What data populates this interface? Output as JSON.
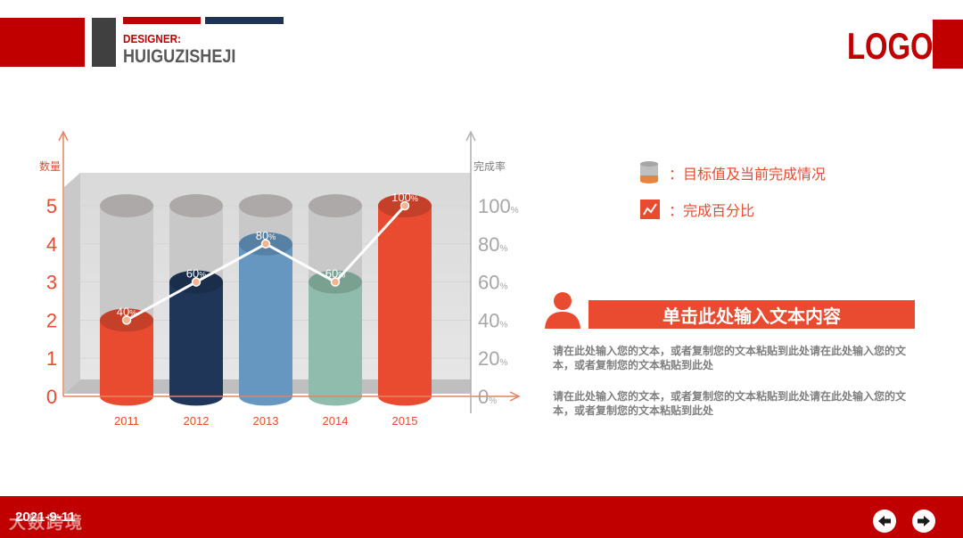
{
  "header": {
    "designer_label": "DESIGNER:",
    "designer_name": "HUIGUZISHEJI",
    "logo": "LOGO"
  },
  "colors": {
    "brand_red": "#c00000",
    "accent_orange": "#e84b2f",
    "navy": "#1f3355",
    "dark_gray": "#404040",
    "text_gray": "#7f7f7f"
  },
  "chart_data": {
    "type": "bar",
    "categories": [
      "2011",
      "2012",
      "2013",
      "2014",
      "2015"
    ],
    "series": [
      {
        "name": "目标值及当前完成情况",
        "values": [
          2,
          3,
          4,
          3,
          5
        ],
        "colors": [
          "#e84b2f",
          "#1f3659",
          "#6597c1",
          "#8fbcac",
          "#e84b2f"
        ]
      },
      {
        "name": "完成百分比",
        "type": "line",
        "values": [
          40,
          60,
          80,
          60,
          100
        ],
        "value_labels": [
          "40%",
          "60%",
          "80%",
          "60%",
          "100%"
        ]
      }
    ],
    "target_values": [
      5,
      5,
      5,
      5,
      5
    ],
    "ylabel": "数量",
    "y2label": "完成率",
    "ylim": [
      0,
      5
    ],
    "y2lim": [
      0,
      100
    ],
    "y_ticks": [
      "0",
      "1",
      "2",
      "3",
      "4",
      "5"
    ],
    "y2_ticks": [
      "0",
      "20",
      "40",
      "60",
      "80",
      "100"
    ],
    "y2_tick_unit": "%",
    "legend_position": "right"
  },
  "legend": [
    {
      "icon": "cylinder-icon",
      "label": "：目标值及当前完成情况"
    },
    {
      "icon": "line-chart-icon",
      "label": "：完成百分比"
    }
  ],
  "text_panel": {
    "icon": "person-icon",
    "title": "单击此处输入文本内容",
    "paragraphs": [
      "请在此处输入您的文本，或者复制您的文本粘贴到此处请在此处输入您的文本，或者复制您的文本粘贴到此处",
      "请在此处输入您的文本，或者复制您的文本粘贴到此处请在此处输入您的文本，或者复制您的文本粘贴到此处"
    ]
  },
  "footer": {
    "date": "2021-9-11",
    "watermark": "大数跨境",
    "prev_icon": "arrow-left-icon",
    "next_icon": "arrow-right-icon"
  }
}
